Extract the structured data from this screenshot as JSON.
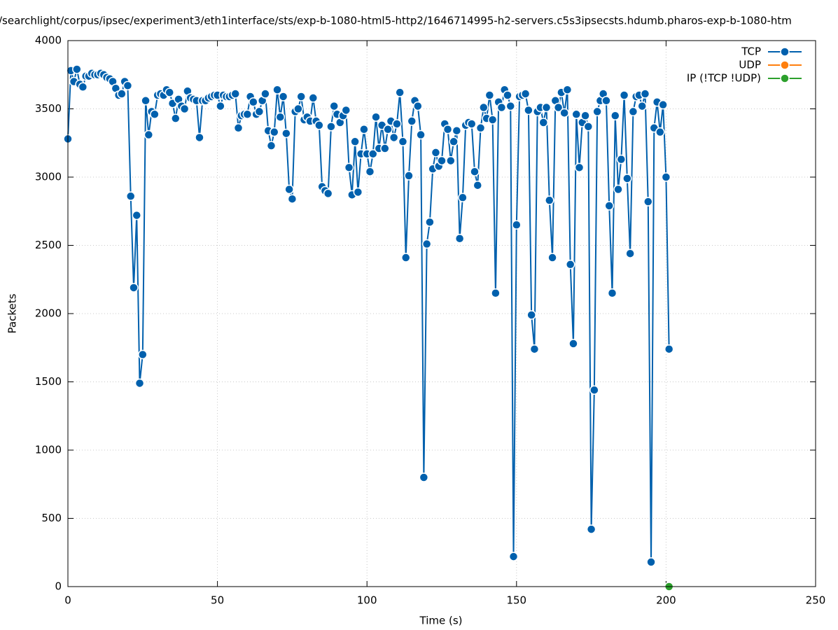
{
  "chart_data": {
    "type": "line",
    "title": "/searchlight/corpus/ipsec/experiment3/eth1interface/sts/exp-b-1080-html5-http2/1646714995-h2-servers.c5s3ipsecsts.hdumb.pharos-exp-b-1080-htm",
    "x_label": "Time (s)",
    "y_label": "Packets",
    "xlim": [
      0,
      250
    ],
    "xticks": [
      0,
      50,
      100,
      150,
      200,
      250
    ],
    "ylim": [
      0,
      4000
    ],
    "yticks": [
      0,
      500,
      1000,
      1500,
      2000,
      2500,
      3000,
      3500,
      4000
    ],
    "grid": true,
    "legend": "top-right",
    "series": [
      {
        "name": "TCP",
        "color": "#0060ad",
        "x": [
          0,
          1,
          2,
          3,
          4,
          5,
          6,
          7,
          8,
          9,
          10,
          11,
          12,
          13,
          14,
          15,
          16,
          17,
          18,
          19,
          20,
          21,
          22,
          23,
          24,
          25,
          26,
          27,
          28,
          29,
          30,
          31,
          32,
          33,
          34,
          35,
          36,
          37,
          38,
          39,
          40,
          41,
          42,
          43,
          44,
          45,
          46,
          47,
          48,
          49,
          50,
          51,
          52,
          53,
          54,
          55,
          56,
          57,
          58,
          59,
          60,
          61,
          62,
          63,
          64,
          65,
          66,
          67,
          68,
          69,
          70,
          71,
          72,
          73,
          74,
          75,
          76,
          77,
          78,
          79,
          80,
          81,
          82,
          83,
          84,
          85,
          86,
          87,
          88,
          89,
          90,
          91,
          92,
          93,
          94,
          95,
          96,
          97,
          98,
          99,
          100,
          101,
          102,
          103,
          104,
          105,
          106,
          107,
          108,
          109,
          110,
          111,
          112,
          113,
          114,
          115,
          116,
          117,
          118,
          119,
          120,
          121,
          122,
          123,
          124,
          125,
          126,
          127,
          128,
          129,
          130,
          131,
          132,
          133,
          134,
          135,
          136,
          137,
          138,
          139,
          140,
          141,
          142,
          143,
          144,
          145,
          146,
          147,
          148,
          149,
          150,
          151,
          152,
          153,
          154,
          155,
          156,
          157,
          158,
          159,
          160,
          161,
          162,
          163,
          164,
          165,
          166,
          167,
          168,
          169,
          170,
          171,
          172,
          173,
          174,
          175,
          176,
          177,
          178,
          179,
          180,
          181,
          182,
          183,
          184,
          185,
          186,
          187,
          188,
          189,
          190,
          191,
          192,
          193,
          194,
          195,
          196,
          197,
          198,
          199,
          200,
          201
        ],
        "values": [
          3280,
          3780,
          3700,
          3790,
          3680,
          3660,
          3740,
          3740,
          3760,
          3750,
          3750,
          3760,
          3750,
          3730,
          3720,
          3700,
          3650,
          3600,
          3610,
          3700,
          3670,
          2860,
          2190,
          2720,
          1490,
          1700,
          3560,
          3310,
          3480,
          3460,
          3600,
          3610,
          3600,
          3640,
          3620,
          3540,
          3430,
          3570,
          3520,
          3500,
          3630,
          3580,
          3570,
          3560,
          3290,
          3560,
          3560,
          3580,
          3590,
          3600,
          3600,
          3520,
          3600,
          3590,
          3590,
          3600,
          3610,
          3360,
          3450,
          3460,
          3460,
          3590,
          3550,
          3460,
          3480,
          3560,
          3610,
          3340,
          3230,
          3330,
          3640,
          3440,
          3590,
          3320,
          2910,
          2840,
          3480,
          3500,
          3590,
          3420,
          3440,
          3410,
          3580,
          3410,
          3380,
          2930,
          2900,
          2880,
          3370,
          3520,
          3460,
          3400,
          3450,
          3490,
          3070,
          2870,
          3260,
          2890,
          3170,
          3350,
          3170,
          3040,
          3170,
          3440,
          3210,
          3380,
          3210,
          3350,
          3410,
          3290,
          3390,
          3620,
          3260,
          2410,
          3010,
          3410,
          3560,
          3520,
          3310,
          800,
          2510,
          2670,
          3060,
          3180,
          3080,
          3120,
          3390,
          3350,
          3120,
          3260,
          3340,
          2550,
          2850,
          3380,
          3400,
          3390,
          3040,
          2940,
          3360,
          3510,
          3430,
          3600,
          3420,
          2150,
          3550,
          3510,
          3640,
          3600,
          3520,
          220,
          2650,
          3590,
          3600,
          3610,
          3490,
          1990,
          1740,
          3480,
          3510,
          3400,
          3510,
          2830,
          2410,
          3560,
          3510,
          3620,
          3470,
          3640,
          2360,
          1780,
          3460,
          3070,
          3400,
          3450,
          3370,
          420,
          1440,
          3480,
          3560,
          3610,
          3560,
          2790,
          2150,
          3450,
          2910,
          3130,
          3600,
          2990,
          2440,
          3480,
          3590,
          3600,
          3520,
          3610,
          2820,
          180,
          3360,
          3550,
          3330,
          3530,
          3000,
          1740
        ]
      },
      {
        "name": "UDP",
        "color": "#ff7f0e",
        "x": [
          201
        ],
        "values": [
          0
        ]
      },
      {
        "name": "IP (!TCP  !UDP)",
        "color": "#2ca02c",
        "x": [
          201
        ],
        "values": [
          0
        ]
      }
    ]
  }
}
